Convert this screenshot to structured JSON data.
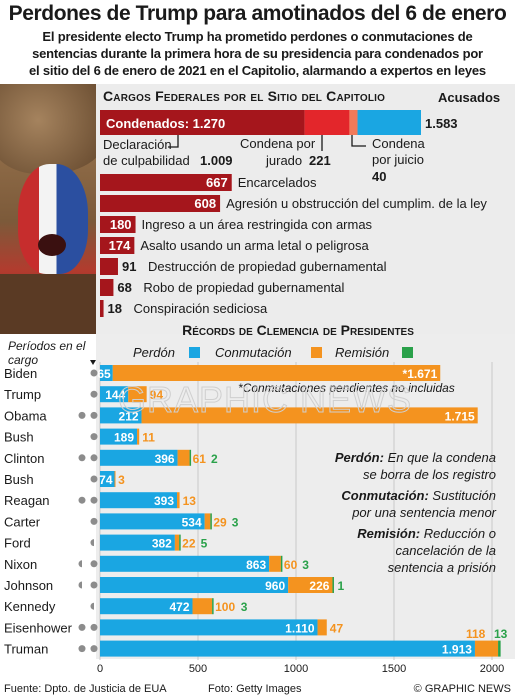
{
  "title": "Perdones de Trump para amotinados del 6 de enero",
  "subtitle_lines": [
    "El presidente electo Trump ha prometido perdones o conmutaciones de",
    "sentencias durante la primera hora de su presidencia para condenados por",
    "el sitio del 6 de enero de 2021 en el Capitolio, alarmando a expertos en leyes"
  ],
  "colors": {
    "dark_red": "#a5161c",
    "bright_red": "#e3262b",
    "blue": "#1aa6e2",
    "orange": "#f4931f",
    "green": "#2aa14a",
    "label_box": "#5a5a5a"
  },
  "chart_data": [
    {
      "type": "bar",
      "title": "Cargos Federales por el Sitio del Capitolio",
      "total": {
        "label": "Acusados",
        "value": 1583,
        "text": "1.583"
      },
      "convicted": {
        "label": "Condenados:",
        "value": 1270,
        "text": "1.270"
      },
      "stack": [
        {
          "label": "Declaración de culpabilidad",
          "value": 1009,
          "text": "1.009"
        },
        {
          "label": "Condena por jurado",
          "value": 221,
          "text": "221"
        },
        {
          "label": "Condena por juicio",
          "value": 40,
          "text": "40"
        }
      ],
      "charges": [
        {
          "value": 667,
          "label": "Encarcelados"
        },
        {
          "value": 608,
          "label": "Agresión u obstrucción del cumplim. de la ley"
        },
        {
          "value": 180,
          "label": "Ingreso a un área restringida con armas"
        },
        {
          "value": 174,
          "label": "Asalto usando un arma letal o peligrosa"
        },
        {
          "value": 91,
          "label": "Destrucción de propiedad gubernamental"
        },
        {
          "value": 68,
          "label": "Robo de propiedad gubernamental"
        },
        {
          "value": 18,
          "label": "Conspiración sediciosa"
        }
      ]
    },
    {
      "type": "bar",
      "title": "Récords de Clemencia de Presidentes",
      "terms_label": "Períodos en el cargo",
      "legend": [
        "Perdón",
        "Conmutación",
        "Remisión"
      ],
      "note": "*Conmutaciones pendientes no incluidas",
      "xlim": [
        0,
        2000
      ],
      "xticks": [
        0,
        500,
        1000,
        1500,
        2000
      ],
      "presidents": [
        {
          "name": "Biden",
          "terms": 1,
          "pardon": 65,
          "pardon_text": "65",
          "commutation": 1671,
          "commutation_text": "*1.671",
          "remission": 0
        },
        {
          "name": "Trump",
          "terms": 1,
          "pardon": 144,
          "pardon_text": "144",
          "commutation": 94,
          "commutation_text": "94",
          "remission": 0
        },
        {
          "name": "Obama",
          "terms": 2,
          "pardon": 212,
          "pardon_text": "212",
          "commutation": 1715,
          "commutation_text": "1.715",
          "remission": 0
        },
        {
          "name": "Bush",
          "terms": 1,
          "pardon": 189,
          "pardon_text": "189",
          "commutation": 11,
          "commutation_text": "11",
          "remission": 0
        },
        {
          "name": "Clinton",
          "terms": 2,
          "pardon": 396,
          "pardon_text": "396",
          "commutation": 61,
          "commutation_text": "61",
          "remission": 2
        },
        {
          "name": "Bush",
          "terms": 1,
          "pardon": 74,
          "pardon_text": "74",
          "commutation": 3,
          "commutation_text": "3",
          "remission": 0
        },
        {
          "name": "Reagan",
          "terms": 2,
          "pardon": 393,
          "pardon_text": "393",
          "commutation": 13,
          "commutation_text": "13",
          "remission": 0
        },
        {
          "name": "Carter",
          "terms": 1,
          "pardon": 534,
          "pardon_text": "534",
          "commutation": 29,
          "commutation_text": "29",
          "remission": 3
        },
        {
          "name": "Ford",
          "terms": 0.5,
          "pardon": 382,
          "pardon_text": "382",
          "commutation": 22,
          "commutation_text": "22",
          "remission": 5
        },
        {
          "name": "Nixon",
          "terms": 1.5,
          "pardon": 863,
          "pardon_text": "863",
          "commutation": 60,
          "commutation_text": "60",
          "remission": 3
        },
        {
          "name": "Johnson",
          "terms": 1.5,
          "pardon": 960,
          "pardon_text": "960",
          "commutation": 226,
          "commutation_text": "226",
          "remission": 1
        },
        {
          "name": "Kennedy",
          "terms": 0.5,
          "pardon": 472,
          "pardon_text": "472",
          "commutation": 100,
          "commutation_text": "100",
          "remission": 3
        },
        {
          "name": "Eisenhower",
          "terms": 2,
          "pardon": 1110,
          "pardon_text": "1.110",
          "commutation": 47,
          "commutation_text": "47",
          "remission": 0
        },
        {
          "name": "Truman",
          "terms": 2,
          "pardon": 1913,
          "pardon_text": "1.913",
          "commutation": 118,
          "commutation_text": "118",
          "remission": 13
        }
      ]
    }
  ],
  "definitions": [
    {
      "term": "Perdón:",
      "lines": [
        "En que la condena",
        "se borra de los registro"
      ]
    },
    {
      "term": "Conmutación:",
      "lines": [
        "Sustitución",
        "por una sentencia menor"
      ]
    },
    {
      "term": "Remisión:",
      "lines": [
        "Reducción o",
        "cancelación de la",
        "sentencia a prisión"
      ]
    }
  ],
  "watermark": "GRAPHIC NEWS",
  "footer": {
    "source": "Fuente: Dpto. de Justicia de EUA",
    "photo": "Foto: Getty Images",
    "credit": "© GRAPHIC NEWS"
  }
}
